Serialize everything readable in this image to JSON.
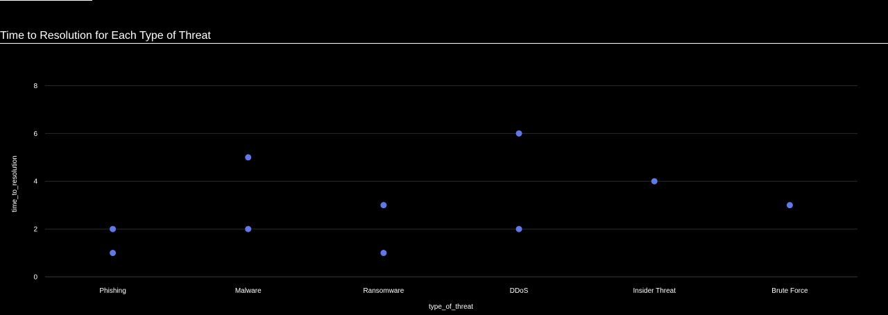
{
  "page": {
    "title": "Time to Resolution for Each Type of Threat"
  },
  "colors": {
    "background": "#000000",
    "marker": "#6378E8",
    "grid": "#2a2a2a",
    "zeroline": "#3a3a3a",
    "text": "#ffffff"
  },
  "chart_data": {
    "type": "scatter",
    "title": "Time to Resolution for Each Type of Threat",
    "xlabel": "type_of_threat",
    "ylabel": "time_to_resolution",
    "categories": [
      "Phishing",
      "Malware",
      "Ransomware",
      "DDoS",
      "Insider Threat",
      "Brute Force"
    ],
    "ylim": [
      0,
      9
    ],
    "yticks": [
      0,
      2,
      4,
      6,
      8
    ],
    "grid": true,
    "points": [
      {
        "x": "Phishing",
        "y": 2
      },
      {
        "x": "Phishing",
        "y": 1
      },
      {
        "x": "Malware",
        "y": 5
      },
      {
        "x": "Malware",
        "y": 2
      },
      {
        "x": "Ransomware",
        "y": 3
      },
      {
        "x": "Ransomware",
        "y": 1
      },
      {
        "x": "DDoS",
        "y": 6
      },
      {
        "x": "DDoS",
        "y": 2
      },
      {
        "x": "Insider Threat",
        "y": 4
      },
      {
        "x": "Brute Force",
        "y": 3
      }
    ]
  }
}
